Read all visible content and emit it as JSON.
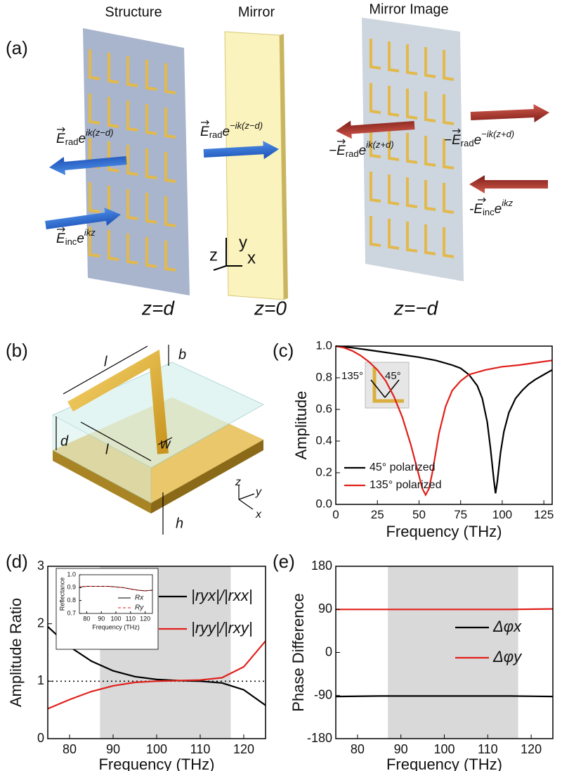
{
  "panel_labels": [
    "(a)",
    "(b)",
    "(c)",
    "(d)",
    "(e)"
  ],
  "panel_a": {
    "headings": [
      "Structure",
      "Mirror",
      "Mirror Image"
    ],
    "planes": [
      "z=d",
      "z=0",
      "z=−d"
    ],
    "axes": [
      "z",
      "y",
      "x"
    ],
    "fields": [
      {
        "vector": "E",
        "sub": "rad",
        "base": "e",
        "sup": "ik(z−d)"
      },
      {
        "vector": "E",
        "sub": "inc",
        "base": "e",
        "sup": "ikz"
      },
      {
        "vector": "E",
        "sub": "rad",
        "base": "e",
        "sup": "−ik(z−d)"
      },
      {
        "sign": "−",
        "vector": "E",
        "sub": "rad",
        "base": "e",
        "sup": "ik(z+d)"
      },
      {
        "sign": "−",
        "vector": "E",
        "sub": "rad",
        "base": "e",
        "sup": "−ik(z+d)"
      },
      {
        "sign": "-",
        "vector": "E",
        "sub": "inc",
        "base": "e",
        "sup": "ikz"
      }
    ]
  },
  "panel_b": {
    "labels": [
      "l",
      "b",
      "w",
      "l",
      "d",
      "h"
    ],
    "axes": [
      "z",
      "y",
      "x"
    ]
  },
  "chart_data": [
    {
      "type": "line",
      "xlabel": "Frequency (THz)",
      "ylabel": "Amplitude",
      "xlim": [
        0,
        130
      ],
      "ylim": [
        0,
        1.0
      ],
      "xticks": [
        0,
        25,
        50,
        75,
        100,
        125
      ],
      "yticks": [
        {
          "value": 0,
          "label": "0.0"
        },
        0.2,
        0.4,
        0.6,
        0.8,
        {
          "value": 1.0,
          "label": "1.0"
        }
      ],
      "legend": "lower left",
      "inset_labels": [
        "135°",
        "45°"
      ],
      "series": [
        {
          "name": "45° polarized",
          "color": "#000000",
          "x": [
            0,
            10,
            20,
            30,
            40,
            50,
            60,
            70,
            75,
            80,
            85,
            88,
            91,
            93,
            95,
            96,
            97,
            99,
            101,
            104,
            108,
            112,
            116,
            120,
            125,
            130
          ],
          "values": [
            1.0,
            0.99,
            0.975,
            0.96,
            0.945,
            0.93,
            0.91,
            0.88,
            0.86,
            0.82,
            0.75,
            0.67,
            0.52,
            0.35,
            0.15,
            0.07,
            0.14,
            0.33,
            0.46,
            0.58,
            0.67,
            0.72,
            0.76,
            0.79,
            0.82,
            0.85
          ]
        },
        {
          "name": "135° polarized",
          "color": "#e0201b",
          "x": [
            0,
            5,
            10,
            15,
            20,
            25,
            30,
            35,
            40,
            45,
            50,
            52,
            54,
            56,
            58,
            62,
            66,
            70,
            75,
            80,
            90,
            100,
            110,
            120,
            130
          ],
          "values": [
            1.0,
            0.99,
            0.97,
            0.94,
            0.9,
            0.85,
            0.78,
            0.68,
            0.55,
            0.38,
            0.18,
            0.1,
            0.06,
            0.1,
            0.2,
            0.45,
            0.62,
            0.72,
            0.78,
            0.82,
            0.85,
            0.87,
            0.88,
            0.895,
            0.91
          ]
        }
      ]
    },
    {
      "type": "line",
      "xlabel": "Frequency (THz)",
      "ylabel": "Amplitude Ratio",
      "xlim": [
        75,
        125
      ],
      "ylim": [
        0,
        3
      ],
      "xticks": [
        80,
        90,
        100,
        110,
        120
      ],
      "yticks": [
        0,
        1,
        2,
        3
      ],
      "shade": [
        87,
        117
      ],
      "hline": 1,
      "legend": "upper right",
      "series": [
        {
          "name": "|ryx|/|rxx|",
          "color": "#000000",
          "x": [
            75,
            80,
            85,
            90,
            95,
            100,
            105,
            110,
            115,
            120,
            125
          ],
          "values": [
            1.95,
            1.6,
            1.35,
            1.18,
            1.08,
            1.03,
            1.01,
            1.0,
            0.97,
            0.85,
            0.58
          ]
        },
        {
          "name": "|ryy|/|rxy|",
          "color": "#e0201b",
          "x": [
            75,
            80,
            85,
            90,
            95,
            100,
            105,
            110,
            115,
            120,
            125
          ],
          "values": [
            0.52,
            0.68,
            0.82,
            0.92,
            0.98,
            1.0,
            1.01,
            1.02,
            1.06,
            1.25,
            1.7
          ]
        }
      ]
    },
    {
      "type": "line",
      "xlabel": "Frequency (THz)",
      "ylabel": "Reflectance",
      "xlim": [
        75,
        125
      ],
      "ylim": [
        0.7,
        1.0
      ],
      "xticks": [
        80,
        90,
        100,
        110,
        120
      ],
      "yticks": [
        0.7,
        0.8,
        0.9,
        {
          "value": 1.0,
          "label": "1.0"
        }
      ],
      "legend": "lower right",
      "series": [
        {
          "name": "Rx",
          "color": "#000000",
          "x": [
            75,
            80,
            85,
            90,
            95,
            100,
            105,
            110,
            115,
            120,
            125
          ],
          "values": [
            0.905,
            0.91,
            0.91,
            0.91,
            0.91,
            0.905,
            0.9,
            0.89,
            0.88,
            0.875,
            0.88
          ]
        },
        {
          "name": "Ry",
          "color": "#e0201b",
          "dash": "dashed",
          "x": [
            75,
            80,
            85,
            90,
            95,
            100,
            105,
            110,
            115,
            120,
            125
          ],
          "values": [
            0.905,
            0.91,
            0.91,
            0.91,
            0.91,
            0.905,
            0.9,
            0.89,
            0.88,
            0.875,
            0.88
          ]
        }
      ]
    },
    {
      "type": "line",
      "xlabel": "Frequency (THz)",
      "ylabel": "Phase Difference",
      "xlim": [
        75,
        125
      ],
      "ylim": [
        -180,
        180
      ],
      "xticks": [
        80,
        90,
        100,
        110,
        120
      ],
      "yticks": [
        -180,
        -90,
        0,
        90,
        180
      ],
      "shade": [
        87,
        117
      ],
      "legend": "center right",
      "series": [
        {
          "name": "Δφx",
          "color": "#000000",
          "x": [
            75,
            85,
            95,
            105,
            115,
            125
          ],
          "values": [
            -92,
            -91,
            -91,
            -91,
            -91,
            -92
          ]
        },
        {
          "name": "Δφy",
          "color": "#e0201b",
          "x": [
            75,
            85,
            95,
            105,
            115,
            125
          ],
          "values": [
            90,
            90,
            90,
            90,
            90,
            91
          ]
        }
      ]
    }
  ]
}
